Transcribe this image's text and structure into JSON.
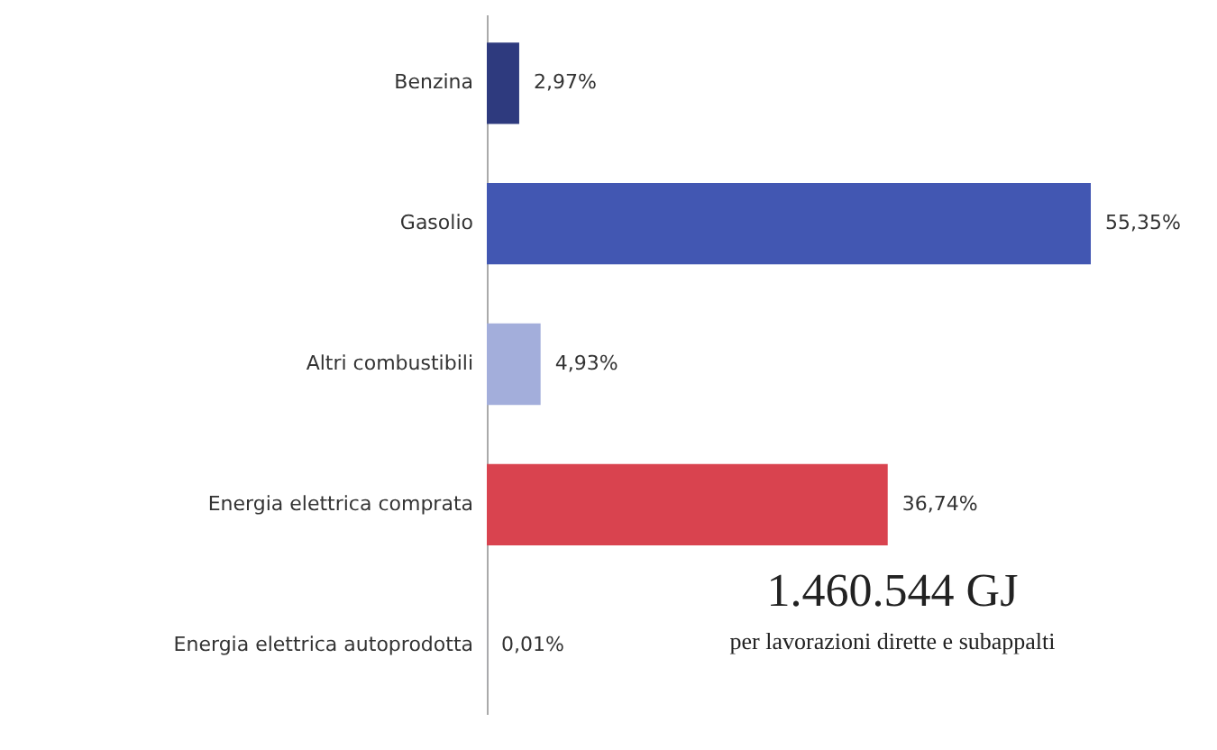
{
  "chart_data": {
    "type": "bar",
    "orientation": "horizontal",
    "categories": [
      "Benzina",
      "Gasolio",
      "Altri combustibili",
      "Energia elettrica comprata",
      "Energia elettrica autoprodotta"
    ],
    "values": [
      2.97,
      55.35,
      4.93,
      36.74,
      0.01
    ],
    "value_labels": [
      "2,97%",
      "55,35%",
      "4,93%",
      "36,74%",
      "0,01%"
    ],
    "colors": [
      "#2e3a7e",
      "#4257b2",
      "#a3aedb",
      "#d9434f",
      "#9aa3c8"
    ],
    "annotations": [
      "1.460.544 GJ",
      "per lavorazioni dirette e subappalti"
    ]
  }
}
